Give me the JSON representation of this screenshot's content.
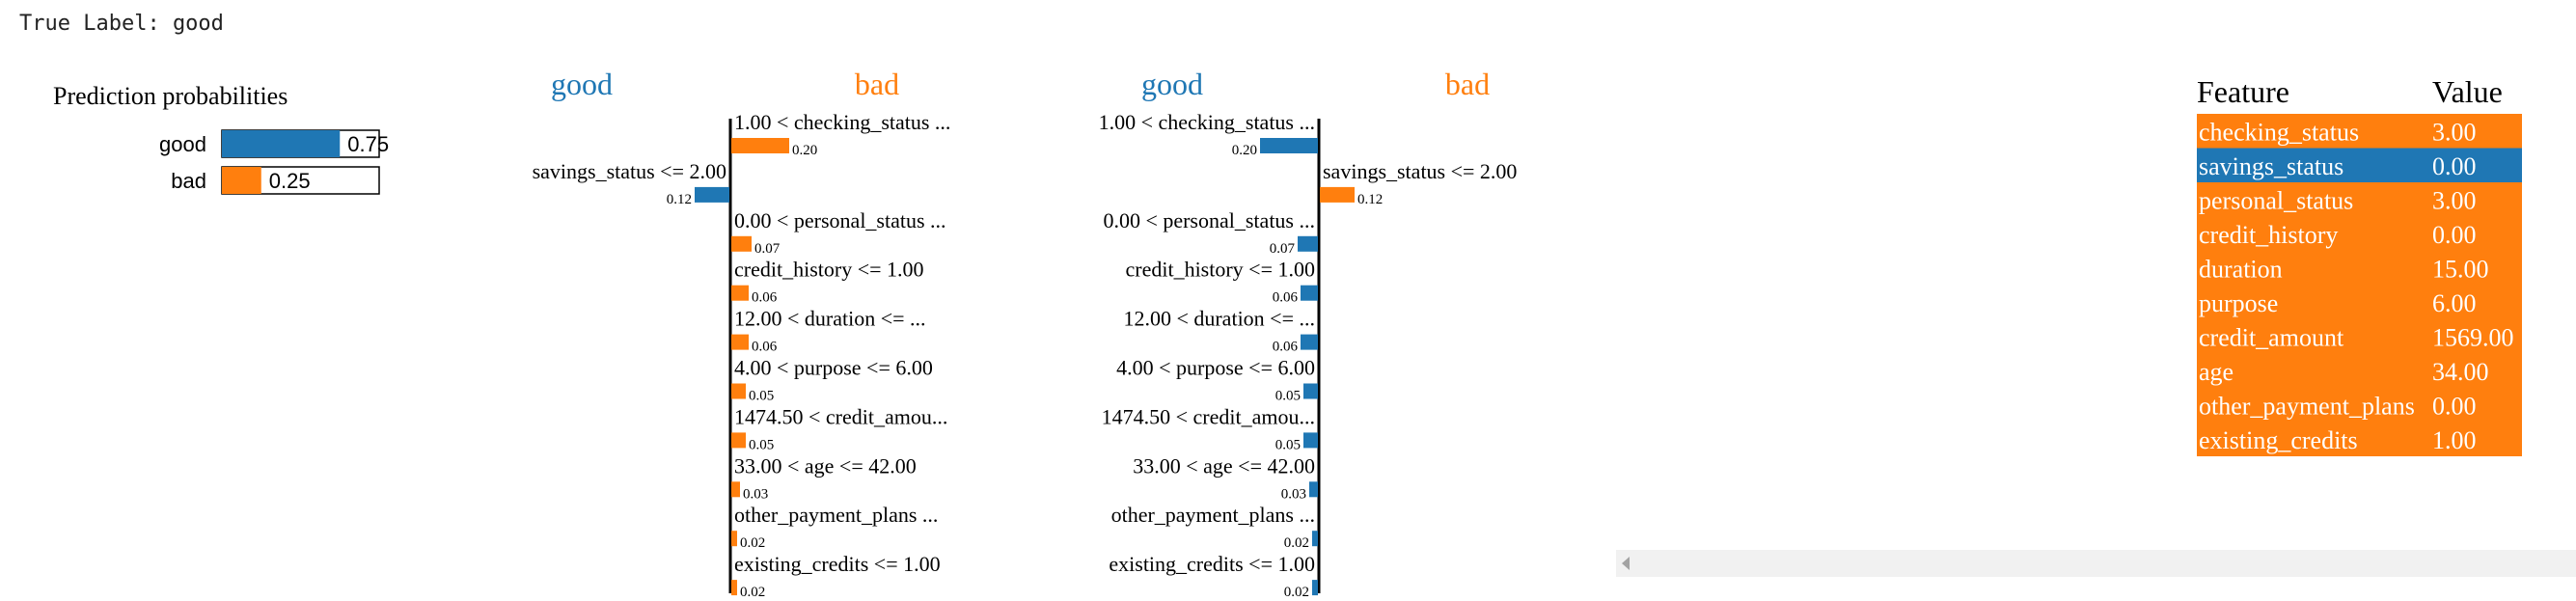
{
  "true_label": "True Label: good",
  "colors": {
    "good": "#1f77b4",
    "bad": "#ff7f0e",
    "axis": "#000000"
  },
  "chart_data": [
    {
      "type": "bar",
      "title": "Prediction probabilities",
      "categories": [
        "good",
        "bad"
      ],
      "values": [
        0.75,
        0.25
      ],
      "value_labels": [
        "0.75",
        "0.25"
      ],
      "xlim": [
        0,
        1
      ]
    },
    {
      "type": "bar",
      "orientation": "horizontal-diverging",
      "class_left": "good",
      "class_right": "bad",
      "features": [
        {
          "label": "1.00 < checking_status ...",
          "value": 0.2,
          "value_label": "0.20",
          "side": "right"
        },
        {
          "label": "savings_status <= 2.00",
          "value": 0.12,
          "value_label": "0.12",
          "side": "left"
        },
        {
          "label": "0.00 < personal_status ...",
          "value": 0.07,
          "value_label": "0.07",
          "side": "right"
        },
        {
          "label": "credit_history <= 1.00",
          "value": 0.06,
          "value_label": "0.06",
          "side": "right"
        },
        {
          "label": "12.00 < duration <= ...",
          "value": 0.06,
          "value_label": "0.06",
          "side": "right"
        },
        {
          "label": "4.00 < purpose <= 6.00",
          "value": 0.05,
          "value_label": "0.05",
          "side": "right"
        },
        {
          "label": "1474.50 < credit_amou...",
          "value": 0.05,
          "value_label": "0.05",
          "side": "right"
        },
        {
          "label": "33.00 < age <= 42.00",
          "value": 0.03,
          "value_label": "0.03",
          "side": "right"
        },
        {
          "label": "other_payment_plans ...",
          "value": 0.02,
          "value_label": "0.02",
          "side": "right"
        },
        {
          "label": "existing_credits <= 1.00",
          "value": 0.02,
          "value_label": "0.02",
          "side": "right"
        }
      ]
    },
    {
      "type": "bar",
      "orientation": "horizontal-diverging",
      "class_left": "good",
      "class_right": "bad",
      "features": [
        {
          "label": "1.00 < checking_status ...",
          "value": 0.2,
          "value_label": "0.20",
          "side": "left"
        },
        {
          "label": "savings_status <= 2.00",
          "value": 0.12,
          "value_label": "0.12",
          "side": "right"
        },
        {
          "label": "0.00 < personal_status ...",
          "value": 0.07,
          "value_label": "0.07",
          "side": "left"
        },
        {
          "label": "credit_history <= 1.00",
          "value": 0.06,
          "value_label": "0.06",
          "side": "left"
        },
        {
          "label": "12.00 < duration <= ...",
          "value": 0.06,
          "value_label": "0.06",
          "side": "left"
        },
        {
          "label": "4.00 < purpose <= 6.00",
          "value": 0.05,
          "value_label": "0.05",
          "side": "left"
        },
        {
          "label": "1474.50 < credit_amou...",
          "value": 0.05,
          "value_label": "0.05",
          "side": "left"
        },
        {
          "label": "33.00 < age <= 42.00",
          "value": 0.03,
          "value_label": "0.03",
          "side": "left"
        },
        {
          "label": "other_payment_plans ...",
          "value": 0.02,
          "value_label": "0.02",
          "side": "left"
        },
        {
          "label": "existing_credits <= 1.00",
          "value": 0.02,
          "value_label": "0.02",
          "side": "left"
        }
      ]
    },
    {
      "type": "table",
      "columns": [
        "Feature",
        "Value"
      ],
      "rows": [
        {
          "feature": "checking_status",
          "value": "3.00",
          "highlight": "bad"
        },
        {
          "feature": "savings_status",
          "value": "0.00",
          "highlight": "good"
        },
        {
          "feature": "personal_status",
          "value": "3.00",
          "highlight": "bad"
        },
        {
          "feature": "credit_history",
          "value": "0.00",
          "highlight": "bad"
        },
        {
          "feature": "duration",
          "value": "15.00",
          "highlight": "bad"
        },
        {
          "feature": "purpose",
          "value": "6.00",
          "highlight": "bad"
        },
        {
          "feature": "credit_amount",
          "value": "1569.00",
          "highlight": "bad"
        },
        {
          "feature": "age",
          "value": "34.00",
          "highlight": "bad"
        },
        {
          "feature": "other_payment_plans",
          "value": "0.00",
          "highlight": "bad"
        },
        {
          "feature": "existing_credits",
          "value": "1.00",
          "highlight": "bad"
        }
      ]
    }
  ]
}
